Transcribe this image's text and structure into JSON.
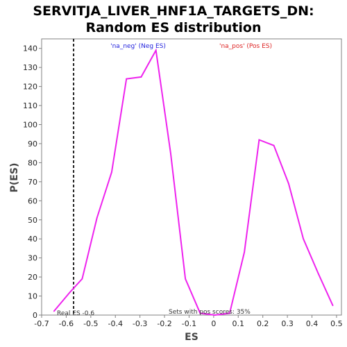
{
  "chart_data": {
    "type": "line",
    "title_line1": "SERVITJA_LIVER_HNF1A_TARGETS_DN:",
    "title_line2": "Random ES distribution",
    "xlabel": "ES",
    "ylabel": "P(ES)",
    "xlim": [
      -0.7,
      0.52
    ],
    "ylim": [
      0,
      145
    ],
    "x_ticks": [
      -0.7,
      -0.6,
      -0.5,
      -0.4,
      -0.3,
      -0.2,
      -0.1,
      0,
      0.1,
      0.2,
      0.3,
      0.4,
      0.5
    ],
    "y_ticks": [
      0,
      10,
      20,
      30,
      40,
      50,
      60,
      70,
      80,
      90,
      100,
      110,
      120,
      130,
      140
    ],
    "series": [
      {
        "name": "Random ES",
        "color": "#ee22ee",
        "x": [
          -0.65,
          -0.585,
          -0.535,
          -0.475,
          -0.415,
          -0.355,
          -0.295,
          -0.235,
          -0.175,
          -0.115,
          -0.055,
          0.005,
          0.065,
          0.125,
          0.185,
          0.245,
          0.305,
          0.365,
          0.425,
          0.485
        ],
        "y": [
          2,
          12,
          19,
          51,
          75,
          124,
          125,
          139,
          85,
          19,
          1,
          0,
          1,
          33,
          92,
          89,
          69,
          40,
          22,
          5
        ]
      }
    ],
    "real_es": -0.57,
    "real_es_label": "Real ES -0.6",
    "neg_label": "'na_neg' (Neg ES)",
    "neg_color": "#2222dd",
    "pos_label": "'na_pos' (Pos ES)",
    "pos_color": "#dd2222",
    "annotation": "Sets with pos scores: 35%",
    "grid": false
  }
}
